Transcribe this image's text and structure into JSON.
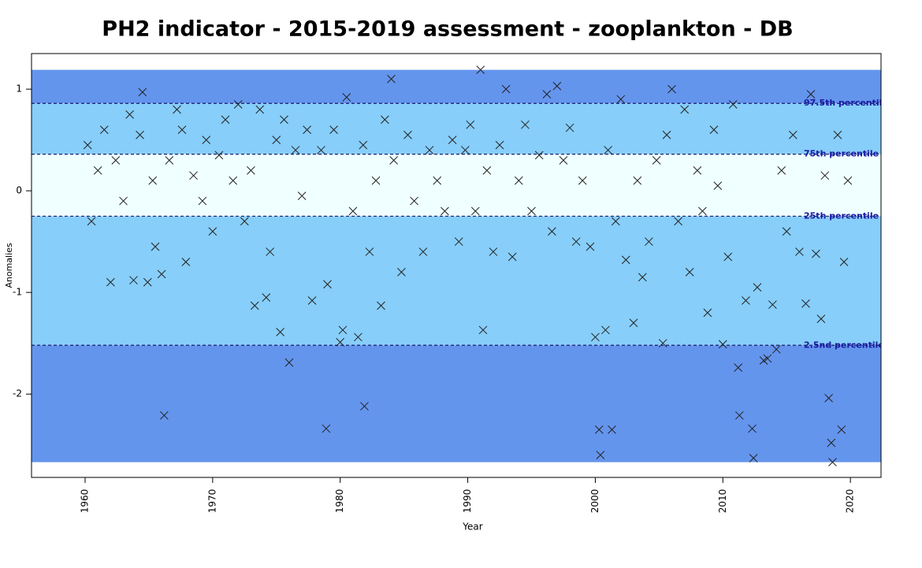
{
  "chart_data": {
    "type": "scatter",
    "title": "PH2 indicator - 2015-2019 assessment - zooplankton - DB",
    "xlabel": "Year",
    "ylabel": "Anomalies",
    "xlim": [
      1955.8,
      2022.4
    ],
    "ylim": [
      -2.82,
      1.35
    ],
    "xticks": [
      1960,
      1970,
      1980,
      1990,
      2000,
      2010,
      2020
    ],
    "yticks": [
      1,
      0,
      -1,
      -2
    ],
    "marker_color": "#222222",
    "bands": [
      {
        "from": 1.19,
        "to": 0.86,
        "color": "#6495ed"
      },
      {
        "from": 0.86,
        "to": 0.36,
        "color": "#87cefa"
      },
      {
        "from": 0.36,
        "to": -0.25,
        "color": "#f0ffff"
      },
      {
        "from": -0.25,
        "to": -1.52,
        "color": "#87cefa"
      },
      {
        "from": -1.52,
        "to": -2.67,
        "color": "#6495ed"
      }
    ],
    "percentiles": [
      {
        "value": 0.86,
        "label": "97.5th percentile"
      },
      {
        "value": 0.36,
        "label": "75th percentile"
      },
      {
        "value": -0.25,
        "label": "25th percentile"
      },
      {
        "value": -1.52,
        "label": "2.5nd percentile"
      }
    ],
    "x": [
      1960.2,
      1960.5,
      1961.0,
      1961.5,
      1962.0,
      1962.4,
      1963.0,
      1963.5,
      1963.8,
      1964.3,
      1964.5,
      1964.9,
      1965.3,
      1965.5,
      1966.0,
      1966.2,
      1966.6,
      1967.2,
      1967.6,
      1967.9,
      1968.5,
      1969.2,
      1969.5,
      1970.0,
      1970.5,
      1971.0,
      1971.6,
      1972.0,
      1972.5,
      1973.0,
      1973.3,
      1973.7,
      1974.2,
      1974.5,
      1975.0,
      1975.3,
      1975.6,
      1976.0,
      1976.5,
      1977.0,
      1977.4,
      1977.8,
      1978.5,
      1978.9,
      1979.0,
      1979.5,
      1980.0,
      1980.2,
      1980.5,
      1981.0,
      1981.4,
      1981.8,
      1981.9,
      1982.3,
      1982.8,
      1983.2,
      1983.5,
      1984.0,
      1984.2,
      1984.8,
      1985.3,
      1985.8,
      1986.5,
      1987.0,
      1987.6,
      1988.2,
      1988.8,
      1989.3,
      1989.8,
      1990.2,
      1990.6,
      1991.0,
      1991.2,
      1991.5,
      1992.0,
      1992.5,
      1993.0,
      1993.5,
      1994.0,
      1994.5,
      1995.0,
      1995.6,
      1996.2,
      1996.6,
      1997.0,
      1997.5,
      1998.0,
      1998.5,
      1999.0,
      1999.6,
      2000.0,
      2000.3,
      2000.4,
      2000.8,
      2001.0,
      2001.3,
      2001.6,
      2002.0,
      2002.4,
      2003.0,
      2003.3,
      2003.7,
      2004.2,
      2004.8,
      2005.3,
      2005.6,
      2006.0,
      2006.5,
      2007.0,
      2007.4,
      2008.0,
      2008.4,
      2008.8,
      2009.3,
      2009.6,
      2010.0,
      2010.4,
      2010.8,
      2011.2,
      2011.3,
      2011.8,
      2012.3,
      2012.4,
      2012.7,
      2013.2,
      2013.5,
      2013.9,
      2014.2,
      2014.6,
      2015.0,
      2015.5,
      2016.0,
      2016.5,
      2016.9,
      2017.3,
      2017.7,
      2018.0,
      2018.3,
      2018.5,
      2018.6,
      2019.0,
      2019.3,
      2019.5,
      2019.8
    ],
    "values": [
      0.45,
      -0.3,
      0.2,
      0.6,
      -0.9,
      0.3,
      -0.1,
      0.75,
      -0.88,
      0.55,
      0.97,
      -0.9,
      0.1,
      -0.55,
      -0.82,
      -2.21,
      0.3,
      0.8,
      0.6,
      -0.7,
      0.15,
      -0.1,
      0.5,
      -0.4,
      0.35,
      0.7,
      0.1,
      0.85,
      -0.3,
      0.2,
      -1.13,
      0.8,
      -1.05,
      -0.6,
      0.5,
      -1.39,
      0.7,
      -1.69,
      0.4,
      -0.05,
      0.6,
      -1.08,
      0.4,
      -2.34,
      -0.92,
      0.6,
      -1.49,
      -1.37,
      0.92,
      -0.2,
      -1.44,
      0.45,
      -2.12,
      -0.6,
      0.1,
      -1.13,
      0.7,
      1.1,
      0.3,
      -0.8,
      0.55,
      -0.1,
      -0.6,
      0.4,
      0.1,
      -0.2,
      0.5,
      -0.5,
      0.4,
      0.65,
      -0.2,
      1.19,
      -1.37,
      0.2,
      -0.6,
      0.45,
      1.0,
      -0.65,
      0.1,
      0.65,
      -0.2,
      0.35,
      0.95,
      -0.4,
      1.03,
      0.3,
      0.62,
      -0.5,
      0.1,
      -0.55,
      -1.44,
      -2.35,
      -2.6,
      -1.37,
      0.4,
      -2.35,
      -0.3,
      0.9,
      -0.68,
      -1.3,
      0.1,
      -0.85,
      -0.5,
      0.3,
      -1.5,
      0.55,
      1.0,
      -0.3,
      0.8,
      -0.8,
      0.2,
      -0.2,
      -1.2,
      0.6,
      0.05,
      -1.51,
      -0.65,
      0.85,
      -1.74,
      -2.21,
      -1.08,
      -2.34,
      -2.63,
      -0.95,
      -1.67,
      -1.65,
      -1.12,
      -1.56,
      0.2,
      -0.4,
      0.55,
      -0.6,
      -1.11,
      0.95,
      -0.62,
      -1.26,
      0.15,
      -2.04,
      -2.48,
      -2.67,
      0.55,
      -2.35,
      -0.7,
      0.1
    ]
  }
}
